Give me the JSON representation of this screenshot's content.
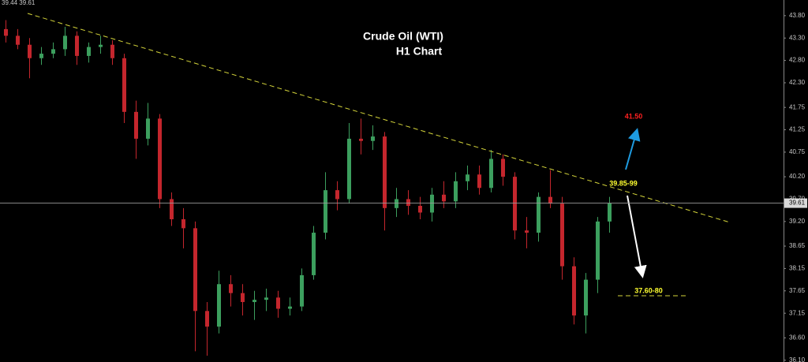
{
  "chart_data": {
    "type": "candlestick",
    "title": "Crude Oil (WTI)",
    "subtitle": "H1 Chart",
    "header": "39.44 39.61",
    "up_color": "#3c9f5e",
    "down_color": "#c4262d",
    "open": [
      43.5,
      43.35,
      43.15,
      42.85,
      42.95,
      43.05,
      43.35,
      42.9,
      43.1,
      43.15,
      42.85,
      41.65,
      41.05,
      41.5,
      39.7,
      39.25,
      39.05,
      37.2,
      36.85,
      37.8,
      37.6,
      37.4,
      37.45,
      37.5,
      37.25,
      37.3,
      38.0,
      38.95,
      39.9,
      39.7,
      41.05,
      41.0,
      41.1,
      39.5,
      39.7,
      39.55,
      39.4,
      39.8,
      39.65,
      40.1,
      40.25,
      39.95,
      40.6,
      40.2,
      39.0,
      38.95,
      39.75,
      39.6,
      38.2,
      37.1,
      37.9,
      39.2
    ],
    "high": [
      43.7,
      43.5,
      43.3,
      43.1,
      43.2,
      43.55,
      43.45,
      43.2,
      43.35,
      43.25,
      42.95,
      41.9,
      41.85,
      41.6,
      39.85,
      39.5,
      39.2,
      37.4,
      38.1,
      38.0,
      37.8,
      37.65,
      37.7,
      37.65,
      37.5,
      38.15,
      39.1,
      40.3,
      40.1,
      41.4,
      41.5,
      41.35,
      41.2,
      39.95,
      39.9,
      39.75,
      39.95,
      40.1,
      40.3,
      40.45,
      40.45,
      40.8,
      40.7,
      40.3,
      39.3,
      39.85,
      40.35,
      39.75,
      38.4,
      38.05,
      39.3,
      39.75
    ],
    "low": [
      43.2,
      43.05,
      42.4,
      42.7,
      42.85,
      42.9,
      42.7,
      42.75,
      42.95,
      42.7,
      41.4,
      40.6,
      40.9,
      39.5,
      39.1,
      38.6,
      36.3,
      36.2,
      36.7,
      37.3,
      37.1,
      37.0,
      37.2,
      37.05,
      37.1,
      37.2,
      37.9,
      38.8,
      39.45,
      39.6,
      40.7,
      40.8,
      39.0,
      39.3,
      39.35,
      39.25,
      39.2,
      39.5,
      39.5,
      39.9,
      39.8,
      39.85,
      40.0,
      38.8,
      38.6,
      38.75,
      39.5,
      37.9,
      36.9,
      36.7,
      37.6,
      38.95
    ],
    "close": [
      43.35,
      43.15,
      42.85,
      42.95,
      43.05,
      43.35,
      42.9,
      43.1,
      43.15,
      42.85,
      41.65,
      41.05,
      41.5,
      39.7,
      39.25,
      39.05,
      37.2,
      36.85,
      37.8,
      37.6,
      37.4,
      37.45,
      37.5,
      37.25,
      37.3,
      38.0,
      38.95,
      39.9,
      39.7,
      41.05,
      41.0,
      41.1,
      39.5,
      39.7,
      39.55,
      39.4,
      39.8,
      39.65,
      40.1,
      40.25,
      39.95,
      40.6,
      40.2,
      39.0,
      38.95,
      39.75,
      39.6,
      38.2,
      37.1,
      37.9,
      39.2,
      39.61
    ],
    "ylim": [
      36.06,
      44.15
    ],
    "yticks": [
      {
        "value": 43.8,
        "label": "43.80"
      },
      {
        "value": 43.3,
        "label": "43.30"
      },
      {
        "value": 42.8,
        "label": "42.80"
      },
      {
        "value": 42.3,
        "label": "42.30"
      },
      41.75,
      41.25,
      40.75,
      {
        "value": 40.2,
        "label": "40.20"
      },
      {
        "value": 39.7,
        "label": "39.70"
      },
      {
        "value": 39.2,
        "label": "39.20"
      },
      38.65,
      38.15,
      37.65,
      37.15,
      {
        "value": 36.6,
        "label": "36.60"
      },
      {
        "value": 36.1,
        "label": "36.10"
      }
    ],
    "current_price": 39.61,
    "annotations": {
      "upside_target": "41.50",
      "resistance": "39.85-99",
      "downside_target": "37.60-80"
    }
  }
}
